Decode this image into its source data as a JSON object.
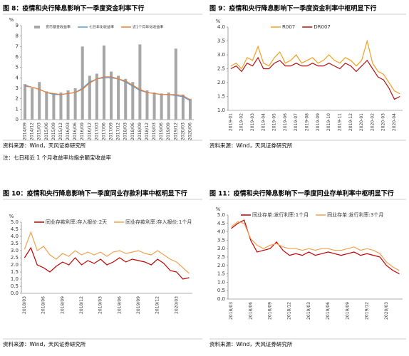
{
  "chart_data": [
    {
      "type": "combo",
      "title": "图 8：疫情和央行降息影响下一季度资金利率下行",
      "ylabel": "%",
      "source": "资料来源：Wind，天风证券研究所",
      "note": "注：七日和近 1 个月收益率均指余额宝收益率",
      "categories": [
        "2014/09",
        "2014/12",
        "2015/03",
        "2015/06",
        "2015/09",
        "2015/12",
        "2016/03",
        "2016/06",
        "2016/09",
        "2016/12",
        "2017/03",
        "2017/06",
        "2017/09",
        "2017/12",
        "2018/03",
        "2018/06",
        "2018/09",
        "2018/12",
        "2019/03",
        "2019/06",
        "2019/09",
        "2019/12",
        "2020/03",
        "2020/06"
      ],
      "ylim": [
        0,
        9
      ],
      "yticks": [
        0,
        1,
        2,
        3,
        4,
        5,
        6,
        7,
        8,
        9
      ],
      "series": [
        {
          "name": "货币基金收益率",
          "type": "bar",
          "color": "#a6a6a6",
          "values": [
            3.4,
            3.0,
            3.6,
            2.7,
            2.5,
            2.6,
            2.8,
            3.0,
            7.0,
            4.2,
            4.4,
            7.1,
            4.6,
            4.2,
            3.9,
            3.6,
            7.2,
            2.8,
            2.6,
            2.5,
            2.6,
            6.8,
            2.4,
            2.0
          ]
        },
        {
          "name": "七日年化收益率",
          "color": "#5b9bd5",
          "values": [
            3.3,
            3.1,
            2.9,
            2.6,
            2.4,
            2.4,
            2.5,
            2.6,
            3.0,
            3.6,
            3.9,
            4.0,
            4.0,
            3.9,
            3.6,
            3.2,
            2.8,
            2.6,
            2.5,
            2.4,
            2.4,
            2.3,
            2.2,
            1.8
          ]
        },
        {
          "name": "近1个月年化收益率",
          "color": "#ed7d31",
          "values": [
            3.2,
            3.1,
            2.9,
            2.6,
            2.5,
            2.4,
            2.5,
            2.6,
            2.9,
            3.5,
            3.9,
            4.1,
            4.1,
            3.9,
            3.7,
            3.3,
            2.9,
            2.6,
            2.5,
            2.4,
            2.4,
            2.4,
            2.3,
            1.9
          ]
        }
      ]
    },
    {
      "type": "line",
      "title": "图 9：疫情和央行降息影响下一季度资金利率中枢明显下行",
      "ylabel": "%",
      "source": "资料来源：Wind，天风证券研究所",
      "categories": [
        "2019-01",
        null,
        "2019-02",
        null,
        "2019-03",
        null,
        "2019-04",
        null,
        "2019-05",
        null,
        "2019-06",
        null,
        "2019-07",
        null,
        "2019-08",
        null,
        "2019-09",
        null,
        "2019-10",
        null,
        "2019-11",
        null,
        "2019-12",
        null,
        "2020-01",
        null,
        "2020-02",
        null,
        "2020-03",
        null,
        "2020-04",
        null
      ],
      "ylim": [
        1,
        4
      ],
      "yticks": [
        {
          "value": 1,
          "label": "1.0"
        },
        1.5,
        {
          "value": 2,
          "label": "2.0"
        },
        2.5,
        {
          "value": 3,
          "label": "3.0"
        },
        3.5,
        {
          "value": 4,
          "label": "4.0"
        }
      ],
      "series": [
        {
          "name": "R007",
          "color": "#f0a020",
          "values": [
            2.6,
            2.7,
            2.5,
            2.9,
            2.8,
            3.3,
            2.7,
            2.6,
            2.9,
            3.1,
            2.7,
            2.8,
            3.0,
            2.7,
            2.8,
            2.9,
            2.7,
            2.8,
            3.0,
            2.8,
            2.7,
            2.9,
            2.8,
            2.6,
            2.8,
            3.5,
            2.7,
            2.4,
            2.3,
            2.0,
            1.7,
            1.6
          ]
        },
        {
          "name": "DR007",
          "color": "#b01010",
          "values": [
            2.5,
            2.6,
            2.4,
            2.7,
            2.6,
            2.9,
            2.5,
            2.5,
            2.7,
            2.8,
            2.6,
            2.6,
            2.7,
            2.6,
            2.6,
            2.7,
            2.6,
            2.6,
            2.7,
            2.6,
            2.5,
            2.7,
            2.6,
            2.4,
            2.6,
            2.8,
            2.5,
            2.2,
            2.1,
            1.8,
            1.4,
            1.5
          ]
        }
      ]
    },
    {
      "type": "line",
      "title": "图 10：疫情和央行降息影响下一季度同业存款利率中枢明显下行",
      "ylabel": "%",
      "source": "资料来源：Wind，天风证券研究所",
      "categories": [
        "2018/03",
        null,
        null,
        "2018/06",
        null,
        null,
        "2018/09",
        null,
        null,
        "2018/12",
        null,
        null,
        "2019/03",
        null,
        null,
        "2019/06",
        null,
        null,
        "2019/09",
        null,
        null,
        "2019/12",
        null,
        null,
        "2020/03",
        null,
        null
      ],
      "ylim": [
        0,
        5
      ],
      "yticks": [
        {
          "value": 0,
          "label": "0.0"
        },
        0.5,
        {
          "value": 1,
          "label": "1.0"
        },
        1.5,
        {
          "value": 2,
          "label": "2.0"
        },
        2.5,
        {
          "value": 3,
          "label": "3.0"
        },
        3.5,
        {
          "value": 4,
          "label": "4.0"
        },
        4.5,
        {
          "value": 5,
          "label": "5.0"
        }
      ],
      "series": [
        {
          "name": "同业存款利率:存入报价:2天",
          "color": "#c00000",
          "values": [
            2.5,
            3.2,
            2.0,
            1.8,
            1.5,
            1.9,
            2.2,
            2.0,
            2.5,
            2.0,
            2.3,
            2.1,
            2.4,
            2.0,
            2.2,
            2.5,
            2.2,
            2.4,
            2.3,
            2.2,
            2.0,
            2.4,
            2.1,
            1.6,
            1.5,
            1.0,
            1.1
          ]
        },
        {
          "name": "同业存款利率:存入报价:1个月",
          "color": "#f0a050",
          "values": [
            3.1,
            4.3,
            3.0,
            3.3,
            2.7,
            2.4,
            2.8,
            2.6,
            3.0,
            2.7,
            2.9,
            2.7,
            2.9,
            2.6,
            2.9,
            3.0,
            2.8,
            2.9,
            3.0,
            2.8,
            2.7,
            3.0,
            2.7,
            2.4,
            2.2,
            1.8,
            1.4
          ]
        }
      ]
    },
    {
      "type": "line",
      "title": "图 11：疫情和央行降息影响下一季度同业存单利率中枢明显下行",
      "ylabel": "%",
      "source": "资料来源：Wind，天风证券研究所",
      "categories": [
        "2018/03",
        null,
        null,
        "2018/06",
        null,
        null,
        "2018/09",
        null,
        null,
        "2018/12",
        null,
        null,
        "2019/03",
        null,
        null,
        "2019/06",
        null,
        null,
        "2019/09",
        null,
        null,
        "2019/12",
        null,
        null,
        "2020/03",
        null,
        null
      ],
      "ylim": [
        0,
        5
      ],
      "yticks": [
        {
          "value": 0,
          "label": "0.0"
        },
        0.5,
        {
          "value": 1,
          "label": "1.0"
        },
        1.5,
        {
          "value": 2,
          "label": "2.0"
        },
        2.5,
        {
          "value": 3,
          "label": "3.0"
        },
        3.5,
        {
          "value": 4,
          "label": "4.0"
        },
        4.5,
        {
          "value": 5,
          "label": "5.0"
        }
      ],
      "series": [
        {
          "name": "同业存单:发行利率:1个月",
          "color": "#c00000",
          "values": [
            4.2,
            4.5,
            4.7,
            3.5,
            2.8,
            2.9,
            3.0,
            3.4,
            2.9,
            2.6,
            2.7,
            2.6,
            2.8,
            2.6,
            2.7,
            2.8,
            2.7,
            2.6,
            2.7,
            2.8,
            2.6,
            2.7,
            2.6,
            2.5,
            2.0,
            1.7,
            1.5
          ]
        },
        {
          "name": "同业存单:发行利率:3个月",
          "color": "#f0a050",
          "values": [
            4.3,
            4.6,
            4.5,
            3.6,
            3.2,
            3.0,
            3.2,
            3.3,
            3.1,
            3.0,
            3.0,
            2.9,
            3.0,
            2.9,
            3.0,
            3.0,
            2.9,
            2.9,
            3.0,
            3.1,
            2.9,
            3.0,
            2.9,
            2.7,
            2.2,
            1.9,
            1.7
          ]
        }
      ]
    }
  ]
}
